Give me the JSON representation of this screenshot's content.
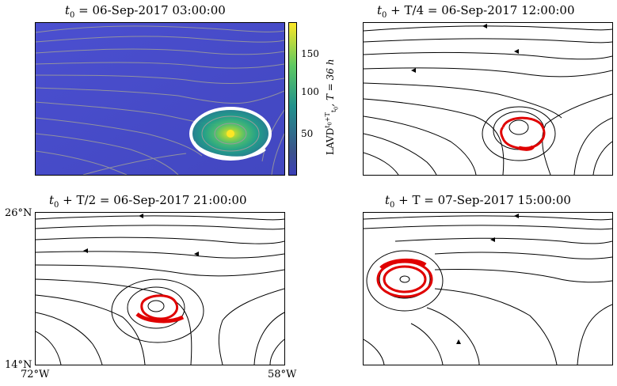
{
  "panels": [
    {
      "title_main": "t",
      "title_sub": "0",
      "title_rest": " = 06-Sep-2017 03:00:00"
    },
    {
      "title_main": "t",
      "title_sub": "0",
      "title_rest": " + T/4 = 06-Sep-2017 12:00:00"
    },
    {
      "title_main": "t",
      "title_sub": "0",
      "title_rest": " + T/2 = 06-Sep-2017 21:00:00"
    },
    {
      "title_main": "t",
      "title_sub": "0",
      "title_rest": " + T = 07-Sep-2017 15:00:00"
    }
  ],
  "colorbar": {
    "ticks": [
      "150",
      "100",
      "50"
    ],
    "label": "LAVD",
    "label_tail": ", T = 36 h",
    "gradient": [
      "#440154",
      "#3b528b",
      "#21918c",
      "#5ec962",
      "#fde725"
    ]
  },
  "axes": {
    "y_top": "26°N",
    "y_bottom": "14°N",
    "x_left": "72°W",
    "x_right": "58°W"
  },
  "colors": {
    "background_field": "#4a4ec8",
    "streamline_light": "#9a9a9a",
    "streamline_dark": "#000000",
    "eddy_boundary": "#ff0000",
    "eddy_outline_white": "#ffffff"
  }
}
